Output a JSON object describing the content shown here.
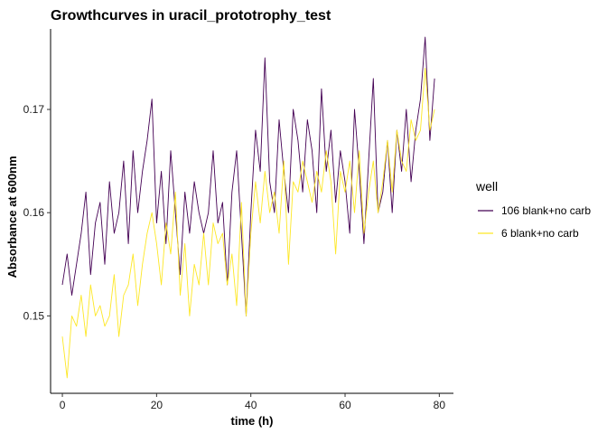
{
  "chart_data": {
    "type": "line",
    "title": "Growthcurves in uracil_prototrophy_test",
    "xlabel": "time (h)",
    "ylabel": "Absorbance at 600nm",
    "xlim": [
      -2.5,
      83
    ],
    "ylim": [
      0.1425,
      0.1778
    ],
    "xticks": [
      0,
      20,
      40,
      60,
      80
    ],
    "xtick_labels": [
      "0",
      "20",
      "40",
      "60",
      "80"
    ],
    "yticks": [
      0.15,
      0.16,
      0.17
    ],
    "ytick_labels": [
      "0.15",
      "0.16",
      "0.17"
    ],
    "grid": false,
    "legend": {
      "title": "well",
      "position": "right"
    },
    "series": [
      {
        "name": "106 blank+no carb",
        "color": "#440154",
        "x": [
          0,
          1,
          2,
          3,
          4,
          5,
          6,
          7,
          8,
          9,
          10,
          11,
          12,
          13,
          14,
          15,
          16,
          17,
          18,
          19,
          20,
          21,
          22,
          23,
          24,
          25,
          26,
          27,
          28,
          29,
          30,
          31,
          32,
          33,
          34,
          35,
          36,
          37,
          38,
          39,
          40,
          41,
          42,
          43,
          44,
          45,
          46,
          47,
          48,
          49,
          50,
          51,
          52,
          53,
          54,
          55,
          56,
          57,
          58,
          59,
          60,
          61,
          62,
          63,
          64,
          65,
          66,
          67,
          68,
          69,
          70,
          71,
          72,
          73,
          74,
          75,
          76,
          77,
          78,
          79
        ],
        "y": [
          0.153,
          0.156,
          0.152,
          0.155,
          0.158,
          0.162,
          0.154,
          0.159,
          0.161,
          0.155,
          0.163,
          0.158,
          0.16,
          0.165,
          0.157,
          0.166,
          0.16,
          0.164,
          0.167,
          0.171,
          0.159,
          0.164,
          0.157,
          0.166,
          0.16,
          0.154,
          0.162,
          0.158,
          0.163,
          0.16,
          0.158,
          0.16,
          0.166,
          0.159,
          0.161,
          0.153,
          0.162,
          0.166,
          0.158,
          0.15,
          0.16,
          0.168,
          0.164,
          0.175,
          0.163,
          0.16,
          0.169,
          0.164,
          0.16,
          0.17,
          0.167,
          0.162,
          0.169,
          0.166,
          0.16,
          0.172,
          0.164,
          0.168,
          0.161,
          0.166,
          0.163,
          0.158,
          0.17,
          0.164,
          0.157,
          0.165,
          0.173,
          0.16,
          0.162,
          0.167,
          0.16,
          0.168,
          0.164,
          0.17,
          0.163,
          0.168,
          0.171,
          0.177,
          0.167,
          0.173
        ]
      },
      {
        "name": "6 blank+no carb",
        "color": "#FDE725",
        "x": [
          0,
          1,
          2,
          3,
          4,
          5,
          6,
          7,
          8,
          9,
          10,
          11,
          12,
          13,
          14,
          15,
          16,
          17,
          18,
          19,
          20,
          21,
          22,
          23,
          24,
          25,
          26,
          27,
          28,
          29,
          30,
          31,
          32,
          33,
          34,
          35,
          36,
          37,
          38,
          39,
          40,
          41,
          42,
          43,
          44,
          45,
          46,
          47,
          48,
          49,
          50,
          51,
          52,
          53,
          54,
          55,
          56,
          57,
          58,
          59,
          60,
          61,
          62,
          63,
          64,
          65,
          66,
          67,
          68,
          69,
          70,
          71,
          72,
          73,
          74,
          75,
          76,
          77,
          78,
          79
        ],
        "y": [
          0.148,
          0.144,
          0.15,
          0.149,
          0.152,
          0.148,
          0.153,
          0.15,
          0.151,
          0.149,
          0.15,
          0.154,
          0.148,
          0.152,
          0.153,
          0.156,
          0.151,
          0.155,
          0.158,
          0.16,
          0.157,
          0.153,
          0.159,
          0.156,
          0.162,
          0.152,
          0.157,
          0.15,
          0.155,
          0.153,
          0.158,
          0.153,
          0.159,
          0.157,
          0.158,
          0.153,
          0.156,
          0.151,
          0.161,
          0.15,
          0.158,
          0.163,
          0.159,
          0.164,
          0.16,
          0.162,
          0.158,
          0.165,
          0.155,
          0.163,
          0.162,
          0.165,
          0.163,
          0.161,
          0.164,
          0.162,
          0.166,
          0.163,
          0.156,
          0.164,
          0.162,
          0.165,
          0.16,
          0.166,
          0.158,
          0.162,
          0.165,
          0.16,
          0.163,
          0.167,
          0.162,
          0.168,
          0.165,
          0.164,
          0.169,
          0.167,
          0.168,
          0.174,
          0.168,
          0.17
        ]
      }
    ]
  }
}
